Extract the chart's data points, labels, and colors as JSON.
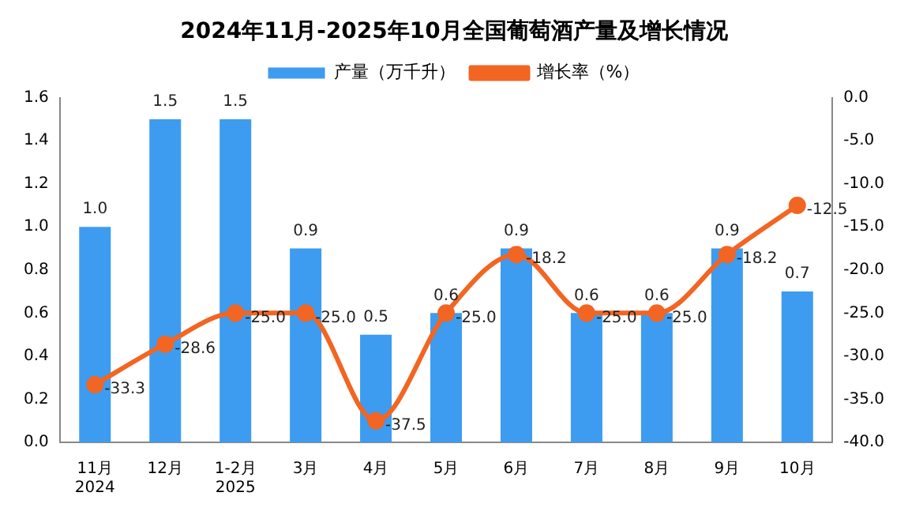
{
  "chart_data": {
    "type": "bar",
    "title": "2024年11月-2025年10月全国葡萄酒产量及增长情况",
    "categories": [
      "11月\n2024",
      "12月",
      "1-2月\n2025",
      "3月",
      "4月",
      "5月",
      "6月",
      "7月",
      "8月",
      "9月",
      "10月"
    ],
    "series": [
      {
        "name": "产量（万千升）",
        "color": "#3d9cf0",
        "values": [
          1.0,
          1.5,
          1.5,
          0.9,
          0.5,
          0.6,
          0.9,
          0.6,
          0.6,
          0.9,
          0.7
        ],
        "value_labels": [
          "1.0",
          "1.5",
          "1.5",
          "0.9",
          "0.5",
          "0.6",
          "0.9",
          "0.6",
          "0.6",
          "0.9",
          "0.7"
        ]
      },
      {
        "name": "增长率（%）",
        "type": "line",
        "axis": "y2",
        "color": "#f26522",
        "marker": "circle",
        "values": [
          -33.3,
          -28.6,
          -25.0,
          -25.0,
          -37.5,
          -25.0,
          -18.2,
          -25.0,
          -25.0,
          -18.2,
          -12.5
        ],
        "value_labels": [
          "-33.3",
          "-28.6",
          "-25.0",
          "-25.0",
          "-37.5",
          "-25.0",
          "-18.2",
          "-25.0",
          "-25.0",
          "-18.2",
          "-12.5"
        ]
      }
    ],
    "ylim": [
      0,
      1.6
    ],
    "yticks": [
      {
        "value": 0,
        "label": "0.0"
      },
      0.2,
      0.4,
      0.6,
      0.8,
      {
        "value": 1,
        "label": "1.0"
      },
      1.2,
      1.4,
      1.6
    ],
    "y2lim": [
      -40,
      0
    ],
    "y2ticks": [
      {
        "value": -40,
        "label": "-40.0"
      },
      {
        "value": -35,
        "label": "-35.0"
      },
      {
        "value": -30,
        "label": "-30.0"
      },
      {
        "value": -25,
        "label": "-25.0"
      },
      {
        "value": -20,
        "label": "-20.0"
      },
      {
        "value": -15,
        "label": "-15.0"
      },
      {
        "value": -10,
        "label": "-10.0"
      },
      {
        "value": -5,
        "label": "-5.0"
      },
      {
        "value": 0,
        "label": "0.0"
      }
    ],
    "legend": "top",
    "grid": false
  }
}
